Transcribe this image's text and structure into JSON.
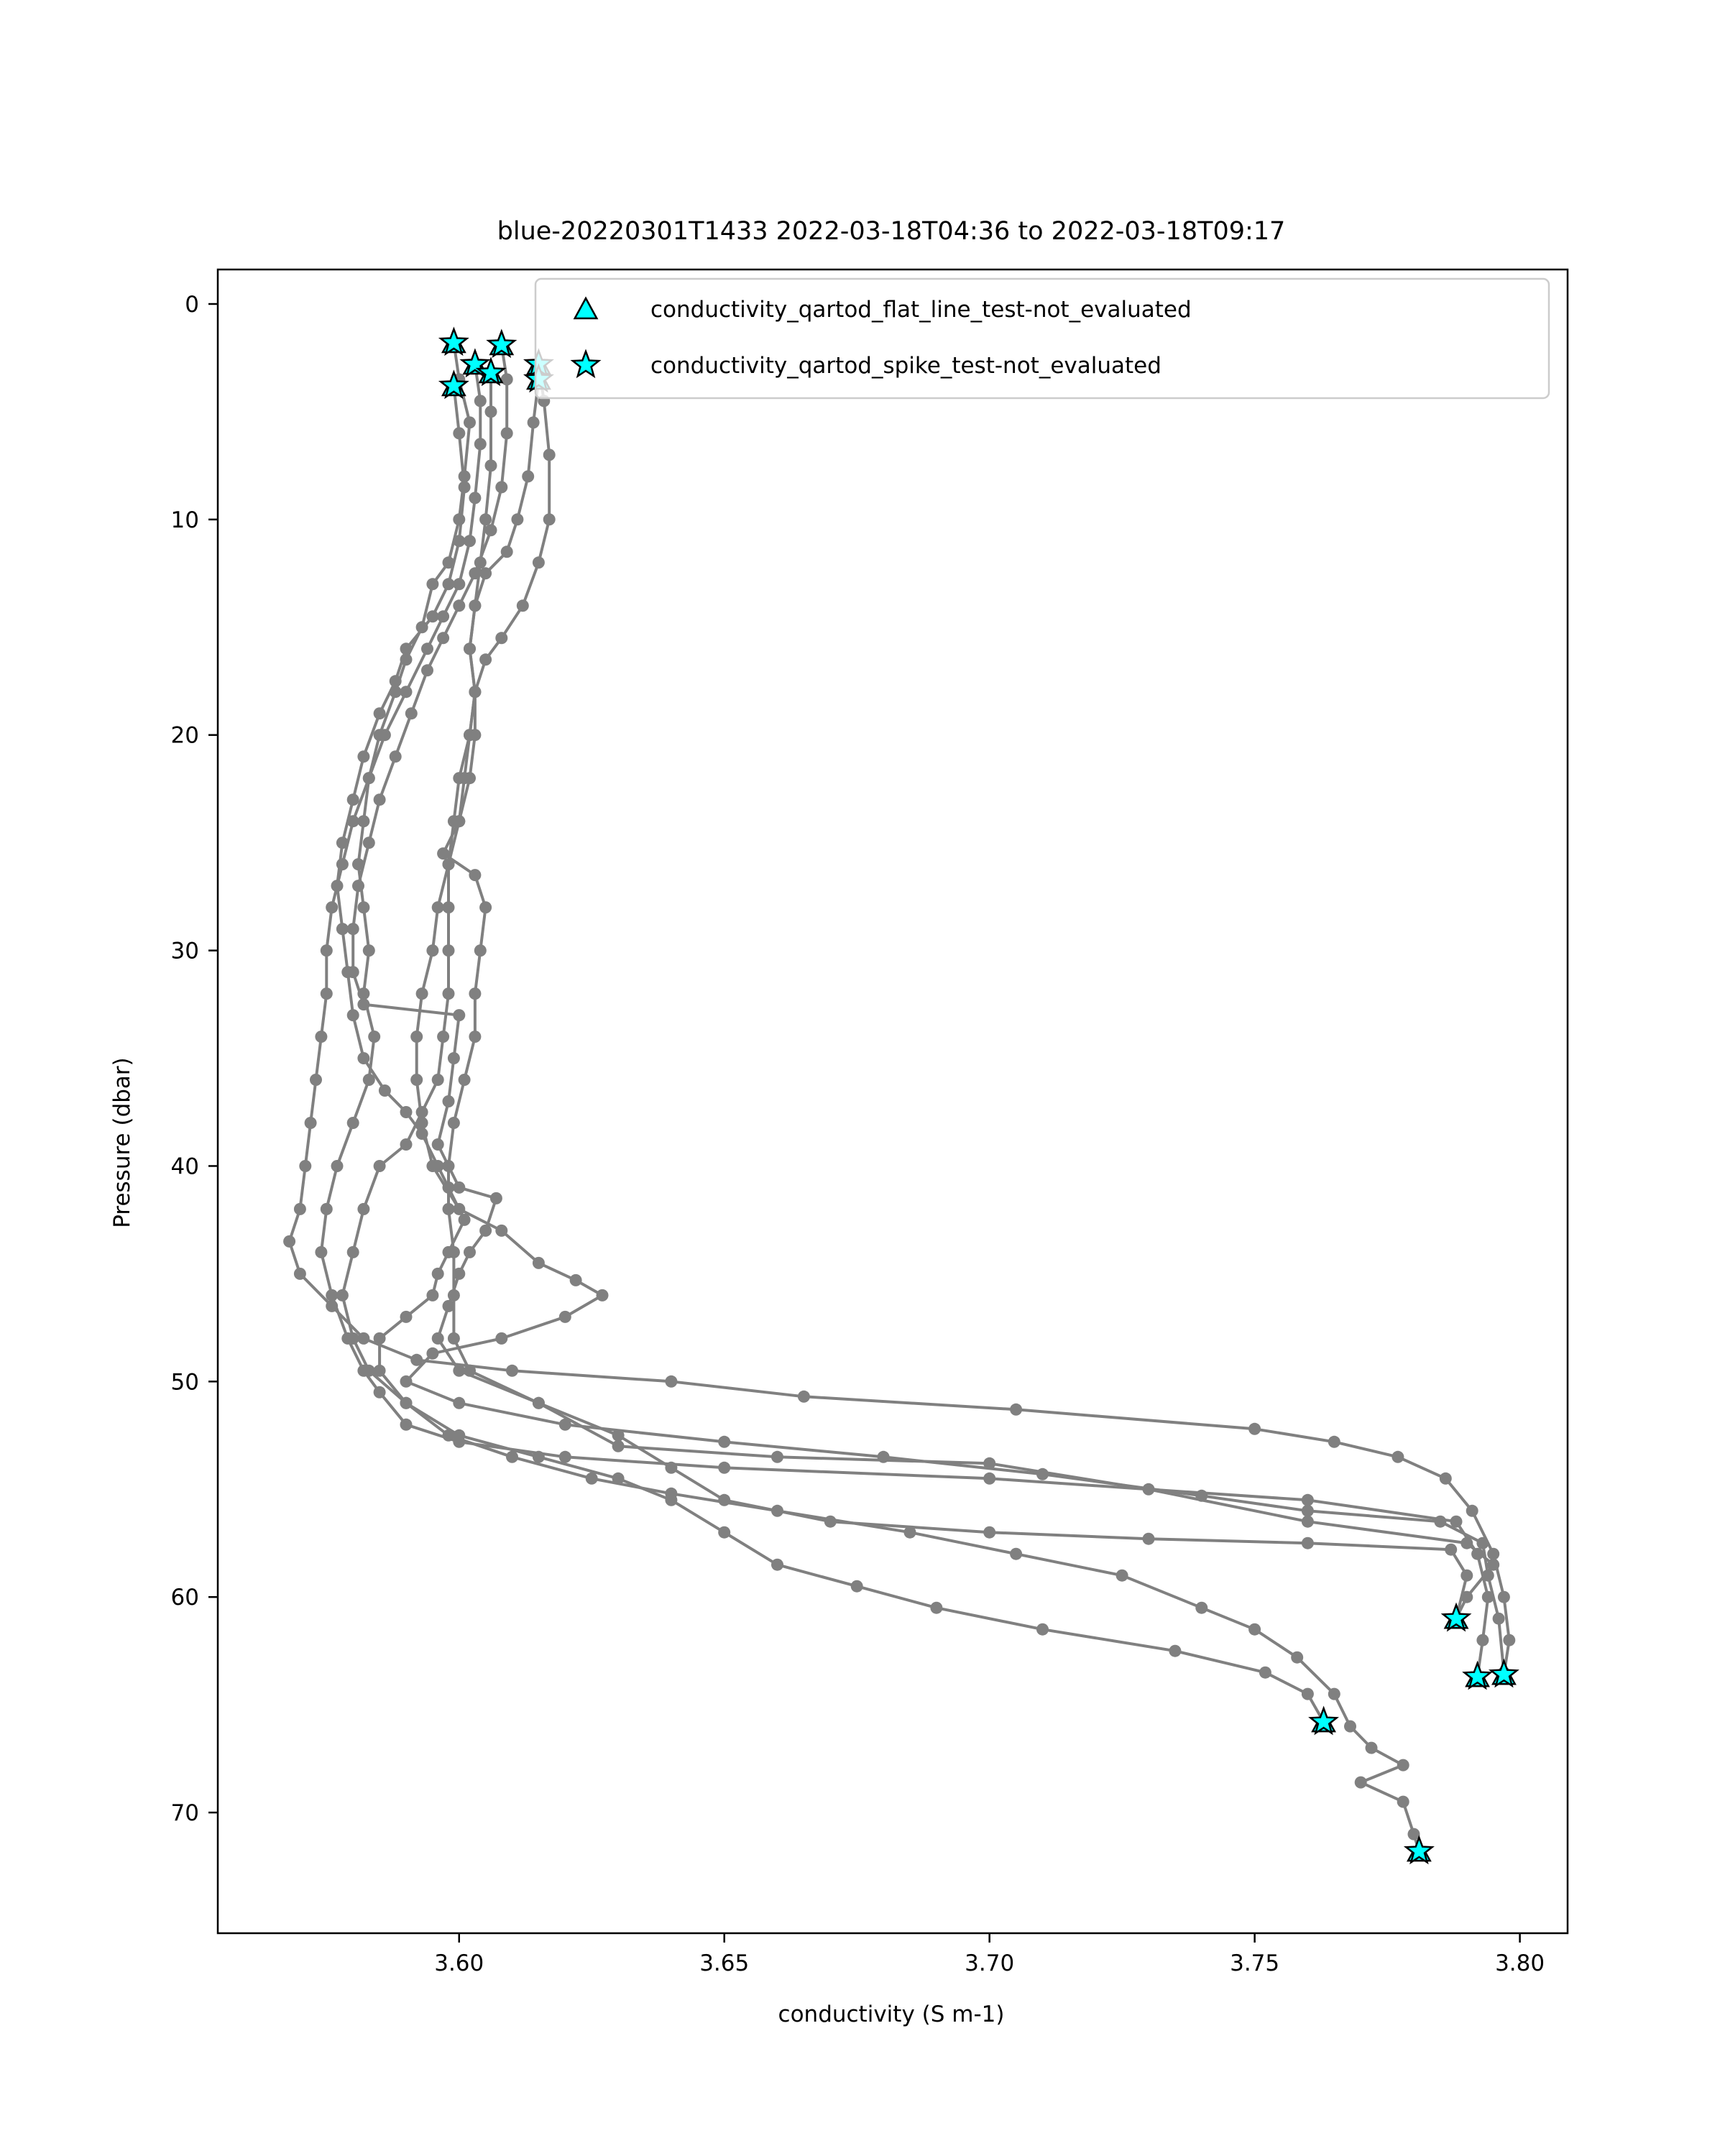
{
  "chart_data": {
    "type": "scatter",
    "title": "blue-20220301T1433 2022-03-18T04:36 to 2022-03-18T09:17",
    "xlabel": "conductivity (S m-1)",
    "ylabel": "Pressure (dbar)",
    "xlim": [
      3.5545,
      3.809
    ],
    "ylim": [
      75.6,
      -1.6
    ],
    "y_inverted": true,
    "xticks": [
      "3.60",
      "3.65",
      "3.70",
      "3.75",
      "3.80"
    ],
    "yticks": [
      "0",
      "10",
      "20",
      "30",
      "40",
      "50",
      "60",
      "70"
    ],
    "grid": false,
    "legend_position": "top-right",
    "colors": {
      "profile": "#808080",
      "flag_fill": "#00ffff",
      "flag_edge": "#000000"
    },
    "legend": [
      {
        "label": "conductivity_qartod_flat_line_test-not_evaluated",
        "marker": "triangle"
      },
      {
        "label": "conductivity_qartod_spike_test-not_evaluated",
        "marker": "star"
      }
    ],
    "profiles": [
      {
        "points": [
          [
            3.599,
            1.8
          ],
          [
            3.6,
            3.5
          ],
          [
            3.602,
            5.5
          ],
          [
            3.601,
            8
          ],
          [
            3.6,
            10
          ],
          [
            3.598,
            12
          ],
          [
            3.595,
            13
          ],
          [
            3.593,
            15
          ],
          [
            3.59,
            16.5
          ],
          [
            3.588,
            18
          ],
          [
            3.585,
            20
          ],
          [
            3.583,
            22
          ],
          [
            3.582,
            24
          ],
          [
            3.581,
            26
          ],
          [
            3.582,
            28
          ],
          [
            3.583,
            30
          ],
          [
            3.582,
            32
          ],
          [
            3.584,
            34
          ],
          [
            3.583,
            36
          ],
          [
            3.58,
            38
          ],
          [
            3.577,
            40
          ],
          [
            3.575,
            42
          ],
          [
            3.574,
            44
          ],
          [
            3.576,
            46
          ],
          [
            3.579,
            48
          ],
          [
            3.582,
            49.5
          ],
          [
            3.585,
            50.5
          ],
          [
            3.59,
            52
          ],
          [
            3.6,
            52.8
          ],
          [
            3.62,
            53.5
          ],
          [
            3.65,
            54
          ],
          [
            3.7,
            54.5
          ],
          [
            3.76,
            55.5
          ],
          [
            3.788,
            56.5
          ],
          [
            3.792,
            58
          ],
          [
            3.794,
            60
          ],
          [
            3.793,
            62
          ],
          [
            3.792,
            63.7
          ]
        ]
      },
      {
        "points": [
          [
            3.603,
            2.8
          ],
          [
            3.604,
            4.5
          ],
          [
            3.604,
            6.5
          ],
          [
            3.603,
            9
          ],
          [
            3.602,
            11
          ],
          [
            3.6,
            13
          ],
          [
            3.597,
            14.5
          ],
          [
            3.594,
            16
          ],
          [
            3.59,
            18
          ],
          [
            3.586,
            20
          ],
          [
            3.583,
            22
          ],
          [
            3.58,
            24
          ],
          [
            3.578,
            26
          ],
          [
            3.576,
            28
          ],
          [
            3.575,
            30
          ],
          [
            3.575,
            32
          ],
          [
            3.574,
            34
          ],
          [
            3.573,
            36
          ],
          [
            3.572,
            38
          ],
          [
            3.571,
            40
          ],
          [
            3.57,
            42
          ],
          [
            3.568,
            43.5
          ],
          [
            3.57,
            45
          ],
          [
            3.576,
            46.5
          ],
          [
            3.582,
            48
          ],
          [
            3.592,
            49
          ],
          [
            3.61,
            49.5
          ],
          [
            3.64,
            50
          ],
          [
            3.665,
            50.7
          ],
          [
            3.705,
            51.3
          ],
          [
            3.75,
            52.2
          ],
          [
            3.765,
            52.8
          ],
          [
            3.777,
            53.5
          ],
          [
            3.786,
            54.5
          ],
          [
            3.791,
            56
          ],
          [
            3.795,
            58
          ],
          [
            3.797,
            60
          ],
          [
            3.798,
            62
          ],
          [
            3.797,
            63.6
          ]
        ]
      },
      {
        "points": [
          [
            3.608,
            1.9
          ],
          [
            3.609,
            3.5
          ],
          [
            3.609,
            6
          ],
          [
            3.608,
            8.5
          ],
          [
            3.606,
            10.5
          ],
          [
            3.603,
            12.5
          ],
          [
            3.6,
            14
          ],
          [
            3.597,
            15.5
          ],
          [
            3.594,
            17
          ],
          [
            3.591,
            19
          ],
          [
            3.588,
            21
          ],
          [
            3.585,
            23
          ],
          [
            3.583,
            25
          ],
          [
            3.581,
            27
          ],
          [
            3.58,
            29
          ],
          [
            3.58,
            31
          ],
          [
            3.582,
            32.5
          ],
          [
            3.6,
            33
          ],
          [
            3.599,
            35
          ],
          [
            3.598,
            37
          ],
          [
            3.596,
            39
          ],
          [
            3.6,
            41
          ],
          [
            3.607,
            41.5
          ],
          [
            3.605,
            43
          ],
          [
            3.602,
            44
          ],
          [
            3.6,
            45
          ],
          [
            3.598,
            46.5
          ],
          [
            3.596,
            48
          ],
          [
            3.6,
            49.5
          ],
          [
            3.615,
            51
          ],
          [
            3.63,
            53
          ],
          [
            3.66,
            53.5
          ],
          [
            3.7,
            53.8
          ],
          [
            3.73,
            55
          ],
          [
            3.76,
            56.5
          ],
          [
            3.79,
            57.5
          ],
          [
            3.795,
            58.5
          ],
          [
            3.79,
            60
          ],
          [
            3.788,
            61
          ]
        ]
      },
      {
        "points": [
          [
            3.615,
            2.8
          ],
          [
            3.616,
            4.5
          ],
          [
            3.617,
            7
          ],
          [
            3.617,
            10
          ],
          [
            3.615,
            12
          ],
          [
            3.612,
            14
          ],
          [
            3.608,
            15.5
          ],
          [
            3.605,
            16.5
          ],
          [
            3.603,
            18
          ],
          [
            3.602,
            20
          ],
          [
            3.601,
            22
          ],
          [
            3.6,
            24
          ],
          [
            3.598,
            26
          ],
          [
            3.596,
            28
          ],
          [
            3.595,
            30
          ],
          [
            3.593,
            32
          ],
          [
            3.592,
            34
          ],
          [
            3.592,
            36
          ],
          [
            3.593,
            38
          ],
          [
            3.595,
            40
          ],
          [
            3.6,
            42
          ],
          [
            3.608,
            43
          ],
          [
            3.615,
            44.5
          ],
          [
            3.622,
            45.3
          ],
          [
            3.627,
            46
          ],
          [
            3.62,
            47
          ],
          [
            3.608,
            48
          ],
          [
            3.595,
            48.7
          ],
          [
            3.59,
            50
          ],
          [
            3.6,
            51
          ],
          [
            3.62,
            52
          ],
          [
            3.65,
            52.8
          ],
          [
            3.68,
            53.5
          ],
          [
            3.71,
            54.3
          ],
          [
            3.74,
            55.3
          ],
          [
            3.76,
            56
          ],
          [
            3.785,
            56.5
          ],
          [
            3.793,
            57.5
          ],
          [
            3.794,
            59
          ],
          [
            3.796,
            61
          ],
          [
            3.797,
            63.5
          ]
        ]
      },
      {
        "points": [
          [
            3.615,
            3.5
          ],
          [
            3.614,
            5.5
          ],
          [
            3.613,
            8
          ],
          [
            3.611,
            10
          ],
          [
            3.609,
            11.5
          ],
          [
            3.605,
            12.5
          ],
          [
            3.603,
            14
          ],
          [
            3.602,
            16
          ],
          [
            3.603,
            18
          ],
          [
            3.603,
            20
          ],
          [
            3.602,
            22
          ],
          [
            3.6,
            24
          ],
          [
            3.597,
            25.5
          ],
          [
            3.603,
            26.5
          ],
          [
            3.605,
            28
          ],
          [
            3.604,
            30
          ],
          [
            3.603,
            32
          ],
          [
            3.603,
            34
          ],
          [
            3.601,
            36
          ],
          [
            3.599,
            38
          ],
          [
            3.598,
            40
          ],
          [
            3.598,
            42
          ],
          [
            3.599,
            44
          ],
          [
            3.599,
            46
          ],
          [
            3.599,
            48
          ],
          [
            3.602,
            49.5
          ],
          [
            3.615,
            51
          ],
          [
            3.63,
            52.5
          ],
          [
            3.64,
            54
          ],
          [
            3.65,
            55.5
          ],
          [
            3.67,
            56.5
          ],
          [
            3.7,
            57
          ],
          [
            3.73,
            57.3
          ],
          [
            3.76,
            57.5
          ],
          [
            3.787,
            57.8
          ],
          [
            3.79,
            59
          ],
          [
            3.788,
            61
          ]
        ]
      },
      {
        "points": [
          [
            3.606,
            3.2
          ],
          [
            3.606,
            5
          ],
          [
            3.606,
            7.5
          ],
          [
            3.605,
            10
          ],
          [
            3.604,
            12
          ],
          [
            3.603,
            14
          ],
          [
            3.602,
            16
          ],
          [
            3.603,
            18
          ],
          [
            3.602,
            20
          ],
          [
            3.6,
            22
          ],
          [
            3.599,
            24
          ],
          [
            3.598,
            26
          ],
          [
            3.598,
            28
          ],
          [
            3.598,
            30
          ],
          [
            3.598,
            32
          ],
          [
            3.597,
            34
          ],
          [
            3.596,
            36
          ],
          [
            3.593,
            37.5
          ],
          [
            3.59,
            39
          ],
          [
            3.585,
            40
          ],
          [
            3.582,
            42
          ],
          [
            3.58,
            44
          ],
          [
            3.578,
            46
          ],
          [
            3.58,
            48
          ],
          [
            3.583,
            49.5
          ],
          [
            3.59,
            51
          ],
          [
            3.598,
            52.5
          ],
          [
            3.61,
            53.5
          ],
          [
            3.625,
            54.5
          ],
          [
            3.64,
            55.2
          ],
          [
            3.66,
            56
          ],
          [
            3.685,
            57
          ],
          [
            3.705,
            58
          ],
          [
            3.725,
            59
          ],
          [
            3.74,
            60.5
          ],
          [
            3.75,
            61.5
          ],
          [
            3.758,
            62.8
          ],
          [
            3.765,
            64.5
          ],
          [
            3.768,
            66
          ],
          [
            3.772,
            67
          ],
          [
            3.778,
            67.8
          ],
          [
            3.77,
            68.6
          ],
          [
            3.778,
            69.5
          ],
          [
            3.78,
            71
          ],
          [
            3.781,
            71.8
          ]
        ]
      },
      {
        "points": [
          [
            3.599,
            3.8
          ],
          [
            3.6,
            6
          ],
          [
            3.601,
            8.5
          ],
          [
            3.6,
            11
          ],
          [
            3.598,
            13
          ],
          [
            3.595,
            14.5
          ],
          [
            3.59,
            16
          ],
          [
            3.588,
            17.5
          ],
          [
            3.585,
            19
          ],
          [
            3.582,
            21
          ],
          [
            3.58,
            23
          ],
          [
            3.578,
            25
          ],
          [
            3.577,
            27
          ],
          [
            3.578,
            29
          ],
          [
            3.579,
            31
          ],
          [
            3.58,
            33
          ],
          [
            3.582,
            35
          ],
          [
            3.586,
            36.5
          ],
          [
            3.59,
            37.5
          ],
          [
            3.593,
            38.5
          ],
          [
            3.596,
            40
          ],
          [
            3.598,
            41
          ],
          [
            3.601,
            42.5
          ],
          [
            3.598,
            44
          ],
          [
            3.596,
            45
          ],
          [
            3.595,
            46
          ],
          [
            3.59,
            47
          ],
          [
            3.585,
            48
          ],
          [
            3.585,
            49.5
          ],
          [
            3.59,
            51
          ],
          [
            3.6,
            52.5
          ],
          [
            3.615,
            53.5
          ],
          [
            3.63,
            54.5
          ],
          [
            3.64,
            55.5
          ],
          [
            3.65,
            57
          ],
          [
            3.66,
            58.5
          ],
          [
            3.675,
            59.5
          ],
          [
            3.69,
            60.5
          ],
          [
            3.71,
            61.5
          ],
          [
            3.735,
            62.5
          ],
          [
            3.752,
            63.5
          ],
          [
            3.76,
            64.5
          ],
          [
            3.763,
            65.8
          ]
        ]
      }
    ],
    "flags": [
      {
        "x": 3.599,
        "y": 1.8
      },
      {
        "x": 3.608,
        "y": 1.9
      },
      {
        "x": 3.603,
        "y": 2.8
      },
      {
        "x": 3.615,
        "y": 2.8
      },
      {
        "x": 3.606,
        "y": 3.2
      },
      {
        "x": 3.615,
        "y": 3.5
      },
      {
        "x": 3.599,
        "y": 3.8
      },
      {
        "x": 3.788,
        "y": 61.0
      },
      {
        "x": 3.792,
        "y": 63.7
      },
      {
        "x": 3.797,
        "y": 63.6
      },
      {
        "x": 3.763,
        "y": 65.8
      },
      {
        "x": 3.781,
        "y": 71.8
      }
    ]
  }
}
